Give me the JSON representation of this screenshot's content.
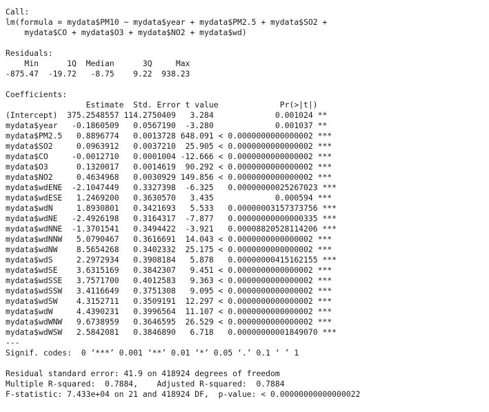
{
  "call_header": "Call:",
  "call_line1": "lm(formula = mydata$PM10 ~ mydata$year + mydata$PM2.5 + mydata$SO2 +",
  "call_line2": "    mydata$CO + mydata$O3 + mydata$NO2 + mydata$wd)",
  "residuals_header": "Residuals:",
  "residuals_labels": "    Min      1Q  Median      3Q     Max ",
  "residuals_values": "-875.47  -19.72   -8.75    9.22  938.23 ",
  "coefficients_header": "Coefficients:",
  "coef_columns": "                 Estimate  Std. Error t value             Pr(>|t|)    ",
  "coef_rows": [
    "(Intercept)  375.2548557 114.2750409   3.284             0.001024 ** ",
    "mydata$year   -0.1860509   0.0567190  -3.280             0.001037 ** ",
    "mydata$PM2.5   0.8896774   0.0013728 648.091 < 0.0000000000000002 ***",
    "mydata$SO2     0.0963912   0.0037210  25.905 < 0.0000000000000002 ***",
    "mydata$CO     -0.0012710   0.0001004 -12.666 < 0.0000000000000002 ***",
    "mydata$O3      0.1320017   0.0014619  90.292 < 0.0000000000000002 ***",
    "mydata$NO2     0.4634968   0.0030929 149.856 < 0.0000000000000002 ***",
    "mydata$wdENE  -2.1047449   0.3327398  -6.325   0.00000000025267023 ***",
    "mydata$wdESE   1.2469200   0.3630570   3.435             0.000594 ***",
    "mydata$wdN     1.8930801   0.3421693   5.533   0.00000003157373756 ***",
    "mydata$wdNE   -2.4926198   0.3164317  -7.877   0.00000000000000335 ***",
    "mydata$wdNNE  -1.3701541   0.3494422  -3.921   0.00008820528114206 ***",
    "mydata$wdNNW   5.0790467   0.3616691  14.043 < 0.0000000000000002 ***",
    "mydata$wdNW    8.5654268   0.3402332  25.175 < 0.0000000000000002 ***",
    "mydata$wdS     2.2972934   0.3908184   5.878   0.00000000415162155 ***",
    "mydata$wdSE    3.6315169   0.3842307   9.451 < 0.0000000000000002 ***",
    "mydata$wdSSE   3.7571700   0.4012583   9.363 < 0.0000000000000002 ***",
    "mydata$wdSSW   3.4116649   0.3751308   9.095 < 0.0000000000000002 ***",
    "mydata$wdSW    4.3152711   0.3509191  12.297 < 0.0000000000000002 ***",
    "mydata$wdW     4.4390231   0.3996564  11.107 < 0.0000000000000002 ***",
    "mydata$wdWNW   9.6738959   0.3646595  26.529 < 0.0000000000000002 ***",
    "mydata$wdWSW   2.5842081   0.3846890   6.718   0.00000000001849070 ***"
  ],
  "separator": "---",
  "signif_codes": "Signif. codes:  0 ‘***’ 0.001 ‘**’ 0.01 ‘*’ 0.05 ‘.’ 0.1 ‘ ’ 1",
  "residual_se": "Residual standard error: 41.9 on 418924 degrees of freedom",
  "r_squared": "Multiple R-squared:  0.7884,\tAdjusted R-squared:  0.7884 ",
  "f_statistic": "F-statistic: 7.433e+04 on 21 and 418924 DF,  p-value: < 0.00000000000000022"
}
